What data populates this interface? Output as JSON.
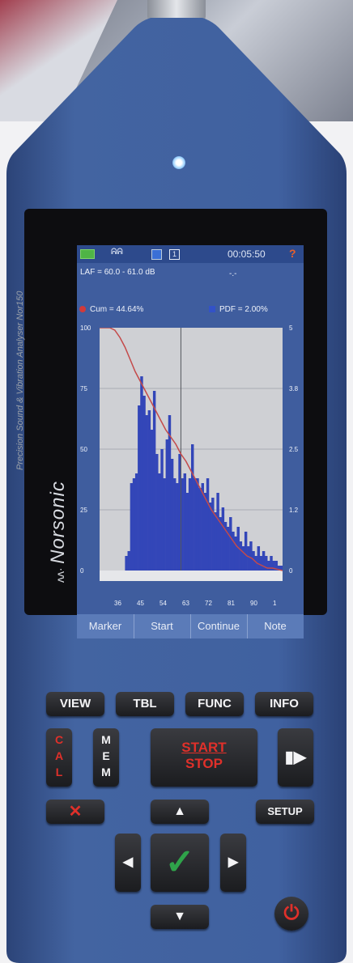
{
  "device": {
    "brand_name": "Norsonic",
    "model_text": "Precision Sound & Vibration Analyser Nor150"
  },
  "screen": {
    "status": {
      "time": "00:05:50",
      "qmark": "?",
      "bell_glyph": "ᕱᕱ",
      "box_b": "1"
    },
    "range_text": "LAF = 60.0 - 61.0 dB",
    "dash_text": "-.-",
    "legend_cum": "Cum = 44.64%",
    "legend_pdf": "PDF = 2.00%",
    "softkeys": [
      "Marker",
      "Start",
      "Continue",
      "Note"
    ]
  },
  "chart_data": {
    "type": "bar",
    "xlabel": "",
    "ylabel": "",
    "x_tick_labels": [
      "36",
      "45",
      "54",
      "63",
      "72",
      "81",
      "90",
      "1"
    ],
    "y_left_ticks": [
      "100",
      "75",
      "50",
      "25",
      "0"
    ],
    "y_right_ticks": [
      "5",
      "3.8",
      "2.5",
      "1.2",
      "0"
    ],
    "x_range": [
      27,
      99
    ],
    "ylim_pdf": [
      0,
      5
    ],
    "ylim_cum": [
      0,
      100
    ],
    "marker_x": 59,
    "pdf_values": [
      0,
      0,
      0,
      0,
      0,
      0,
      0,
      0,
      0,
      0,
      0.3,
      0.4,
      1.8,
      1.9,
      2.0,
      3.4,
      4.0,
      3.6,
      3.2,
      3.3,
      2.9,
      3.7,
      2.4,
      2.0,
      2.5,
      1.9,
      2.7,
      3.2,
      2.3,
      1.9,
      1.8,
      2.4,
      1.9,
      2.0,
      1.6,
      1.9,
      2.6,
      1.9,
      1.9,
      1.7,
      1.8,
      1.6,
      1.9,
      1.4,
      1.5,
      1.2,
      1.6,
      1.1,
      1.3,
      1.0,
      0.9,
      1.1,
      0.8,
      0.7,
      0.9,
      0.6,
      0.5,
      0.8,
      0.5,
      0.6,
      0.4,
      0.3,
      0.5,
      0.3,
      0.4,
      0.3,
      0.2,
      0.3,
      0.2,
      0.2,
      0.1,
      0.1
    ],
    "cum_line": [
      [
        27,
        100
      ],
      [
        31,
        100
      ],
      [
        33,
        99
      ],
      [
        35,
        96
      ],
      [
        37,
        92
      ],
      [
        39,
        87
      ],
      [
        41,
        82
      ],
      [
        43,
        78
      ],
      [
        45,
        74
      ],
      [
        47,
        70
      ],
      [
        49,
        66
      ],
      [
        51,
        62
      ],
      [
        53,
        58
      ],
      [
        55,
        55
      ],
      [
        57,
        52
      ],
      [
        59,
        48
      ],
      [
        61,
        45
      ],
      [
        63,
        41
      ],
      [
        65,
        37
      ],
      [
        67,
        33
      ],
      [
        69,
        29
      ],
      [
        71,
        25
      ],
      [
        73,
        22
      ],
      [
        75,
        19
      ],
      [
        77,
        16
      ],
      [
        79,
        13
      ],
      [
        81,
        10
      ],
      [
        83,
        8
      ],
      [
        85,
        6
      ],
      [
        87,
        5
      ],
      [
        89,
        3
      ],
      [
        91,
        2
      ],
      [
        93,
        1
      ],
      [
        95,
        1
      ],
      [
        99,
        0
      ]
    ]
  },
  "keys": {
    "view": "VIEW",
    "tbl": "TBL",
    "func": "FUNC",
    "info": "INFO",
    "cal": "CAL",
    "mem": "MEM",
    "start": "START",
    "stop": "STOP",
    "setup": "SETUP",
    "clear_glyph": "✕",
    "play_glyph": "▮▶",
    "up_glyph": "▲",
    "down_glyph": "▼",
    "left_glyph": "◀",
    "right_glyph": "▶",
    "ok_glyph": "✓",
    "power_glyph": "⏻"
  },
  "colors": {
    "device_blue": "#3d5a93",
    "screen_blue": "#3f5d9e",
    "histogram": "#3346b8",
    "cum_line": "#c44a4a",
    "plot_bg": "#cfd0d4",
    "key_red": "#e0302a",
    "ok_green": "#2fa34a"
  }
}
